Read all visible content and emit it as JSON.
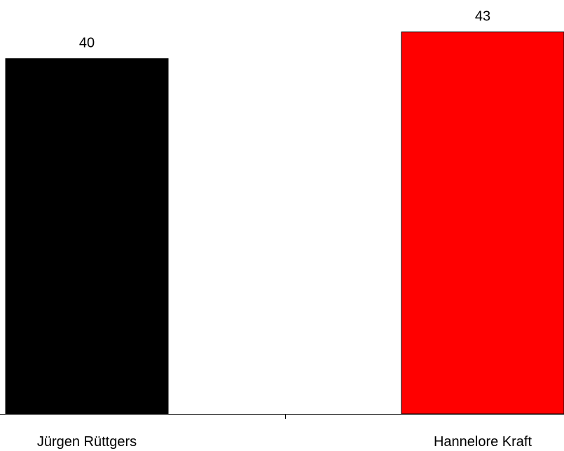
{
  "chart_data": {
    "type": "bar",
    "categories": [
      "Jürgen Rüttgers",
      "Hannelore Kraft"
    ],
    "values": [
      40,
      43
    ],
    "data_labels": [
      "40",
      "43"
    ],
    "colors": [
      "#000000",
      "#ff0000"
    ],
    "ylim": [
      0,
      46.6
    ],
    "grid": false,
    "legend": "none",
    "title": "",
    "xlabel": "",
    "ylabel": ""
  }
}
